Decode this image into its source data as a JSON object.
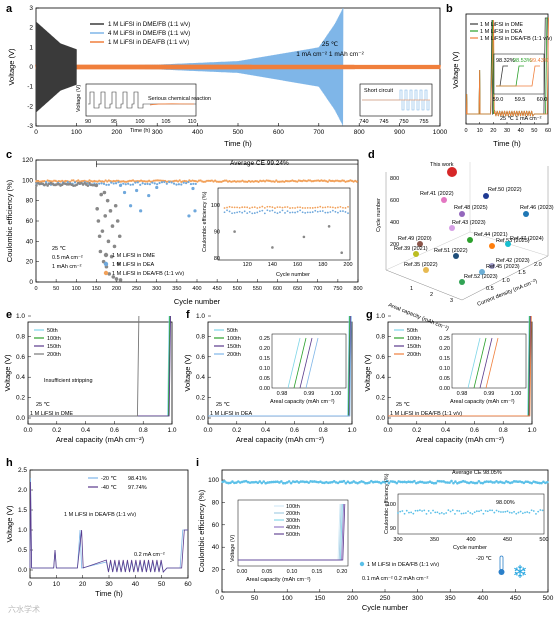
{
  "colors": {
    "dme": "#3a3a3a",
    "dea": "#7fb6e8",
    "deafb": "#f07f3c",
    "green": "#2aa02a",
    "purple": "#5a3a8c",
    "cyan": "#7fd6e8",
    "ce_dme": "#888888",
    "ce_dea": "#6fa8dc",
    "ce_deafb": "#f2a15a"
  },
  "panel_a": {
    "label": "a",
    "legend": [
      "1 M LiFSI in DME/FB (1:1 v/v)",
      "4 M LiFSI in DME/FB (1:1 v/v)",
      "1 M LiFSI in DEA/FB (1:1 v/v)"
    ],
    "annotation": [
      "25 ℃",
      "1 mA cm⁻²  1 mAh cm⁻²"
    ],
    "inset1_text": "Serious chemical reaction",
    "inset2_text": "Short circuit",
    "inset1": {
      "xlabel": "Time (h)",
      "ylabel": "Voltage (V)",
      "xticks": [
        "90",
        "95",
        "100",
        "105",
        "110"
      ]
    },
    "inset2": {
      "xticks": [
        "740",
        "745",
        "750",
        "755"
      ]
    },
    "chart_data": {
      "type": "line",
      "xlabel": "Time (h)",
      "ylabel": "Voltage (V)",
      "xlim": [
        0,
        1000
      ],
      "ylim": [
        -3,
        3
      ],
      "xticks": [
        "0",
        "100",
        "200",
        "300",
        "400",
        "500",
        "600",
        "700",
        "800",
        "900",
        "1000"
      ],
      "yticks": [
        "-3",
        "-2",
        "-1",
        "0",
        "1",
        "2",
        "3"
      ],
      "series": [
        {
          "name": "1 M LiFSI in DME/FB (1:1 v/v)",
          "x_end": 100,
          "envelope": [
            [
              0,
              2.3
            ],
            [
              60,
              1.2
            ],
            [
              100,
              0.9
            ]
          ]
        },
        {
          "name": "4 M LiFSI in DME/FB (1:1 v/v)",
          "x_end": 760,
          "envelope": [
            [
              100,
              0.05
            ],
            [
              300,
              0.12
            ],
            [
              500,
              0.3
            ],
            [
              700,
              1.0
            ],
            [
              740,
              2.2
            ],
            [
              760,
              3.0
            ]
          ]
        },
        {
          "name": "1 M LiFSI in DEA/FB (1:1 v/v)",
          "x_end": 1000,
          "envelope": [
            [
              0,
              0.12
            ],
            [
              500,
              0.11
            ],
            [
              1000,
              0.1
            ]
          ]
        }
      ]
    }
  },
  "panel_b": {
    "label": "b",
    "legend": [
      "1 M LiFSI in DME",
      "1 M LiFSI in DEA",
      "1 M LiFSI in DEA/FB (1:1 v/v)"
    ],
    "ce_labels": [
      "98.32%",
      "98.53%",
      "99.43%"
    ],
    "annotation": "25 ℃  1 mA cm⁻²",
    "inset": {
      "xlabel": "Time (h)",
      "ylabel": "Voltage (V)",
      "xticks": [
        "59.0",
        "59.5",
        "60.0"
      ]
    },
    "chart_data": {
      "type": "line",
      "xlabel": "Time (h)",
      "ylabel": "Voltage (V)",
      "xlim": [
        0,
        60
      ],
      "xticks": [
        "0",
        "10",
        "20",
        "30",
        "40",
        "50",
        "60"
      ]
    }
  },
  "panel_c": {
    "label": "c",
    "average": "Average CE 99.24%",
    "legend": [
      "1 M LiFSI in DME",
      "1 M LiFSI in DEA",
      "1 M LiFSI in DEA/FB (1:1 v/v)"
    ],
    "conditions": [
      "25 ℃",
      "0.5 mA cm⁻²",
      "1 mAh cm⁻²"
    ],
    "inset": {
      "xlabel": "Cycle number",
      "ylabel": "Coulombic efficiency (%)",
      "xticks": [
        "120",
        "140",
        "160",
        "180",
        "200"
      ],
      "yticks": [
        "80",
        "90",
        "100"
      ]
    },
    "chart_data": {
      "type": "scatter",
      "xlabel": "Cycle number",
      "ylabel": "Coulombic efficiency (%)",
      "xlim": [
        0,
        800
      ],
      "ylim": [
        0,
        120
      ],
      "xticks": [
        "0",
        "50",
        "100",
        "150",
        "200",
        "250",
        "300",
        "350",
        "400",
        "450",
        "500",
        "550",
        "600",
        "650",
        "700",
        "750",
        "800"
      ],
      "yticks": [
        "0",
        "20",
        "40",
        "60",
        "80",
        "100",
        "120"
      ],
      "series": [
        {
          "name": "1 M LiFSI in DME",
          "x_range": [
            1,
            210
          ],
          "scatter": [
            [
              150,
              95
            ],
            [
              152,
              72
            ],
            [
              155,
              60
            ],
            [
              158,
              45
            ],
            [
              160,
              30
            ],
            [
              162,
              86
            ],
            [
              165,
              50
            ],
            [
              168,
              20
            ],
            [
              170,
              88
            ],
            [
              172,
              65
            ],
            [
              175,
              15
            ],
            [
              178,
              80
            ],
            [
              180,
              40
            ],
            [
              182,
              8
            ],
            [
              185,
              70
            ],
            [
              188,
              25
            ],
            [
              190,
              55
            ],
            [
              192,
              5
            ],
            [
              195,
              35
            ],
            [
              198,
              75
            ],
            [
              200,
              3
            ],
            [
              203,
              60
            ],
            [
              205,
              18
            ],
            [
              208,
              45
            ],
            [
              210,
              2
            ]
          ]
        },
        {
          "name": "1 M LiFSI in DEA",
          "x_range": [
            1,
            400
          ],
          "scatter": [
            [
              210,
              95
            ],
            [
              220,
              88
            ],
            [
              235,
              75
            ],
            [
              250,
              90
            ],
            [
              260,
              70
            ],
            [
              280,
              85
            ],
            [
              300,
              93
            ],
            [
              380,
              65
            ],
            [
              390,
              92
            ],
            [
              395,
              70
            ]
          ]
        },
        {
          "name": "1 M LiFSI in DEA/FB (1:1 v/v)",
          "x_range": [
            1,
            800
          ],
          "value": 99.24
        }
      ]
    }
  },
  "panel_d": {
    "label": "d",
    "this_work": "This work",
    "refs": [
      "Ref.41 (2022)",
      "Ref.50 (2022)",
      "Ref.48 (2025)",
      "Ref.46 (2023)",
      "Ref.43 (2023)",
      "Ref.44 (2021)",
      "Ref.49 (2020)",
      "Ref.53 (2025)",
      "Ref.47 (2024)",
      "Ref.39 (2021)",
      "Ref.51 (2022)",
      "Ref.42 (2023)",
      "Ref.35 (2022)",
      "Ref.45 (2023)",
      "Ref.52 (2023)"
    ],
    "zlabel": "Cycle number",
    "xlabel": "Areal capacity (mAh cm⁻²)",
    "ylabel": "Current density (mA cm⁻²)",
    "ticks_z": [
      "800",
      "600",
      "400",
      "200"
    ],
    "ticks_x": [
      "1",
      "2",
      "3"
    ],
    "ticks_y": [
      "0.5",
      "1.0",
      "1.5",
      "2.0"
    ]
  },
  "panel_e": {
    "label": "e",
    "legend": [
      "50th",
      "100th",
      "150th",
      "200th"
    ],
    "note": "Insufficient stripping",
    "conditions": [
      "25 ℃",
      "1 M LiFSI in DME"
    ],
    "chart_data": {
      "type": "line",
      "xlabel": "Areal capacity (mAh cm⁻²)",
      "ylabel": "Voltage (V)",
      "xlim": [
        0,
        1.0
      ],
      "xticks": [
        "0.0",
        "0.2",
        "0.4",
        "0.6",
        "0.8",
        "1.0"
      ],
      "yticks": [
        "0.0",
        "0.2",
        "0.4",
        "0.6",
        "0.8",
        "1.0"
      ]
    }
  },
  "panel_f": {
    "label": "f",
    "legend": [
      "50th",
      "100th",
      "150th",
      "200th"
    ],
    "conditions": [
      "25 ℃",
      "1 M LiFSI in DEA"
    ],
    "inset": {
      "xlabel": "Areal capacity (mAh cm⁻²)",
      "xticks": [
        "0.98",
        "0.99",
        "1.00"
      ],
      "yticks": [
        "0.00",
        "0.05",
        "0.10",
        "0.15",
        "0.20",
        "0.25"
      ]
    },
    "chart_data": {
      "type": "line",
      "xlabel": "Areal capacity (mAh cm⁻²)",
      "ylabel": "Voltage (V)",
      "xlim": [
        0,
        1.0
      ],
      "xticks": [
        "0.0",
        "0.2",
        "0.4",
        "0.6",
        "0.8",
        "1.0"
      ],
      "yticks": [
        "0.0",
        "0.2",
        "0.4",
        "0.6",
        "0.8",
        "1.0"
      ]
    }
  },
  "panel_g": {
    "label": "g",
    "legend": [
      "50th",
      "100th",
      "150th",
      "200th"
    ],
    "conditions": [
      "25 ℃",
      "1 M LiFSI in DEA/FB (1:1 v/v)"
    ],
    "inset": {
      "xlabel": "Areal capacity (mAh cm⁻²)",
      "xticks": [
        "0.98",
        "0.99",
        "1.00"
      ],
      "yticks": [
        "0.00",
        "0.05",
        "0.10",
        "0.15",
        "0.20",
        "0.25"
      ]
    },
    "chart_data": {
      "type": "line",
      "xlabel": "Areal capacity (mAh cm⁻²)",
      "ylabel": "Voltage (V)",
      "xlim": [
        0,
        1.0
      ],
      "xticks": [
        "0.0",
        "0.2",
        "0.4",
        "0.6",
        "0.8",
        "1.0"
      ],
      "yticks": [
        "0.0",
        "0.2",
        "0.4",
        "0.6",
        "0.8",
        "1.0"
      ]
    }
  },
  "panel_h": {
    "label": "h",
    "legend": [
      {
        "name": "-20 ℃",
        "ce": "98.41%"
      },
      {
        "name": "-40 ℃",
        "ce": "97.74%"
      }
    ],
    "electrolyte": "1 M LiFSI in DEA/FB (1:1 v/v)",
    "rate": "0.2 mA cm⁻²",
    "chart_data": {
      "type": "line",
      "xlabel": "Time (h)",
      "ylabel": "Voltage (V)",
      "xlim": [
        0,
        60
      ],
      "ylim": [
        -0.2,
        2.5
      ],
      "xticks": [
        "0",
        "10",
        "20",
        "30",
        "40",
        "50",
        "60"
      ],
      "yticks": [
        "0.0",
        "0.5",
        "1.0",
        "1.5",
        "2.0",
        "2.5"
      ]
    }
  },
  "panel_i": {
    "label": "i",
    "average": "Average CE 98.05%",
    "ce_label": "98.00%",
    "legend": "1 M LiFSI in DEA/FB (1:1 v/v)",
    "conditions": [
      "0.1 mA cm⁻²  0.2 mAh cm⁻²",
      "-20 ℃"
    ],
    "inset_v": {
      "legend": [
        "100th",
        "200th",
        "300th",
        "400th",
        "500th"
      ],
      "xlabel": "Areal capacity (mAh cm⁻²)",
      "ylabel": "Voltage (V)",
      "xticks": [
        "0.00",
        "0.05",
        "0.10",
        "0.15",
        "0.20"
      ]
    },
    "inset_ce": {
      "xlabel": "Cycle number",
      "ylabel": "Coulombic efficiency (%)",
      "xticks": [
        "300",
        "350",
        "400",
        "450",
        "500"
      ],
      "yticks": [
        "90",
        "100"
      ]
    },
    "chart_data": {
      "type": "scatter",
      "xlabel": "Cycle number",
      "ylabel": "Coulombic efficiency (%)",
      "xlim": [
        0,
        500
      ],
      "ylim": [
        0,
        100
      ],
      "xticks": [
        "0",
        "50",
        "100",
        "150",
        "200",
        "250",
        "300",
        "350",
        "400",
        "450",
        "500"
      ],
      "yticks": [
        "0",
        "20",
        "40",
        "60",
        "80",
        "100"
      ],
      "value": 98.05
    }
  },
  "watermark": "六水学术"
}
